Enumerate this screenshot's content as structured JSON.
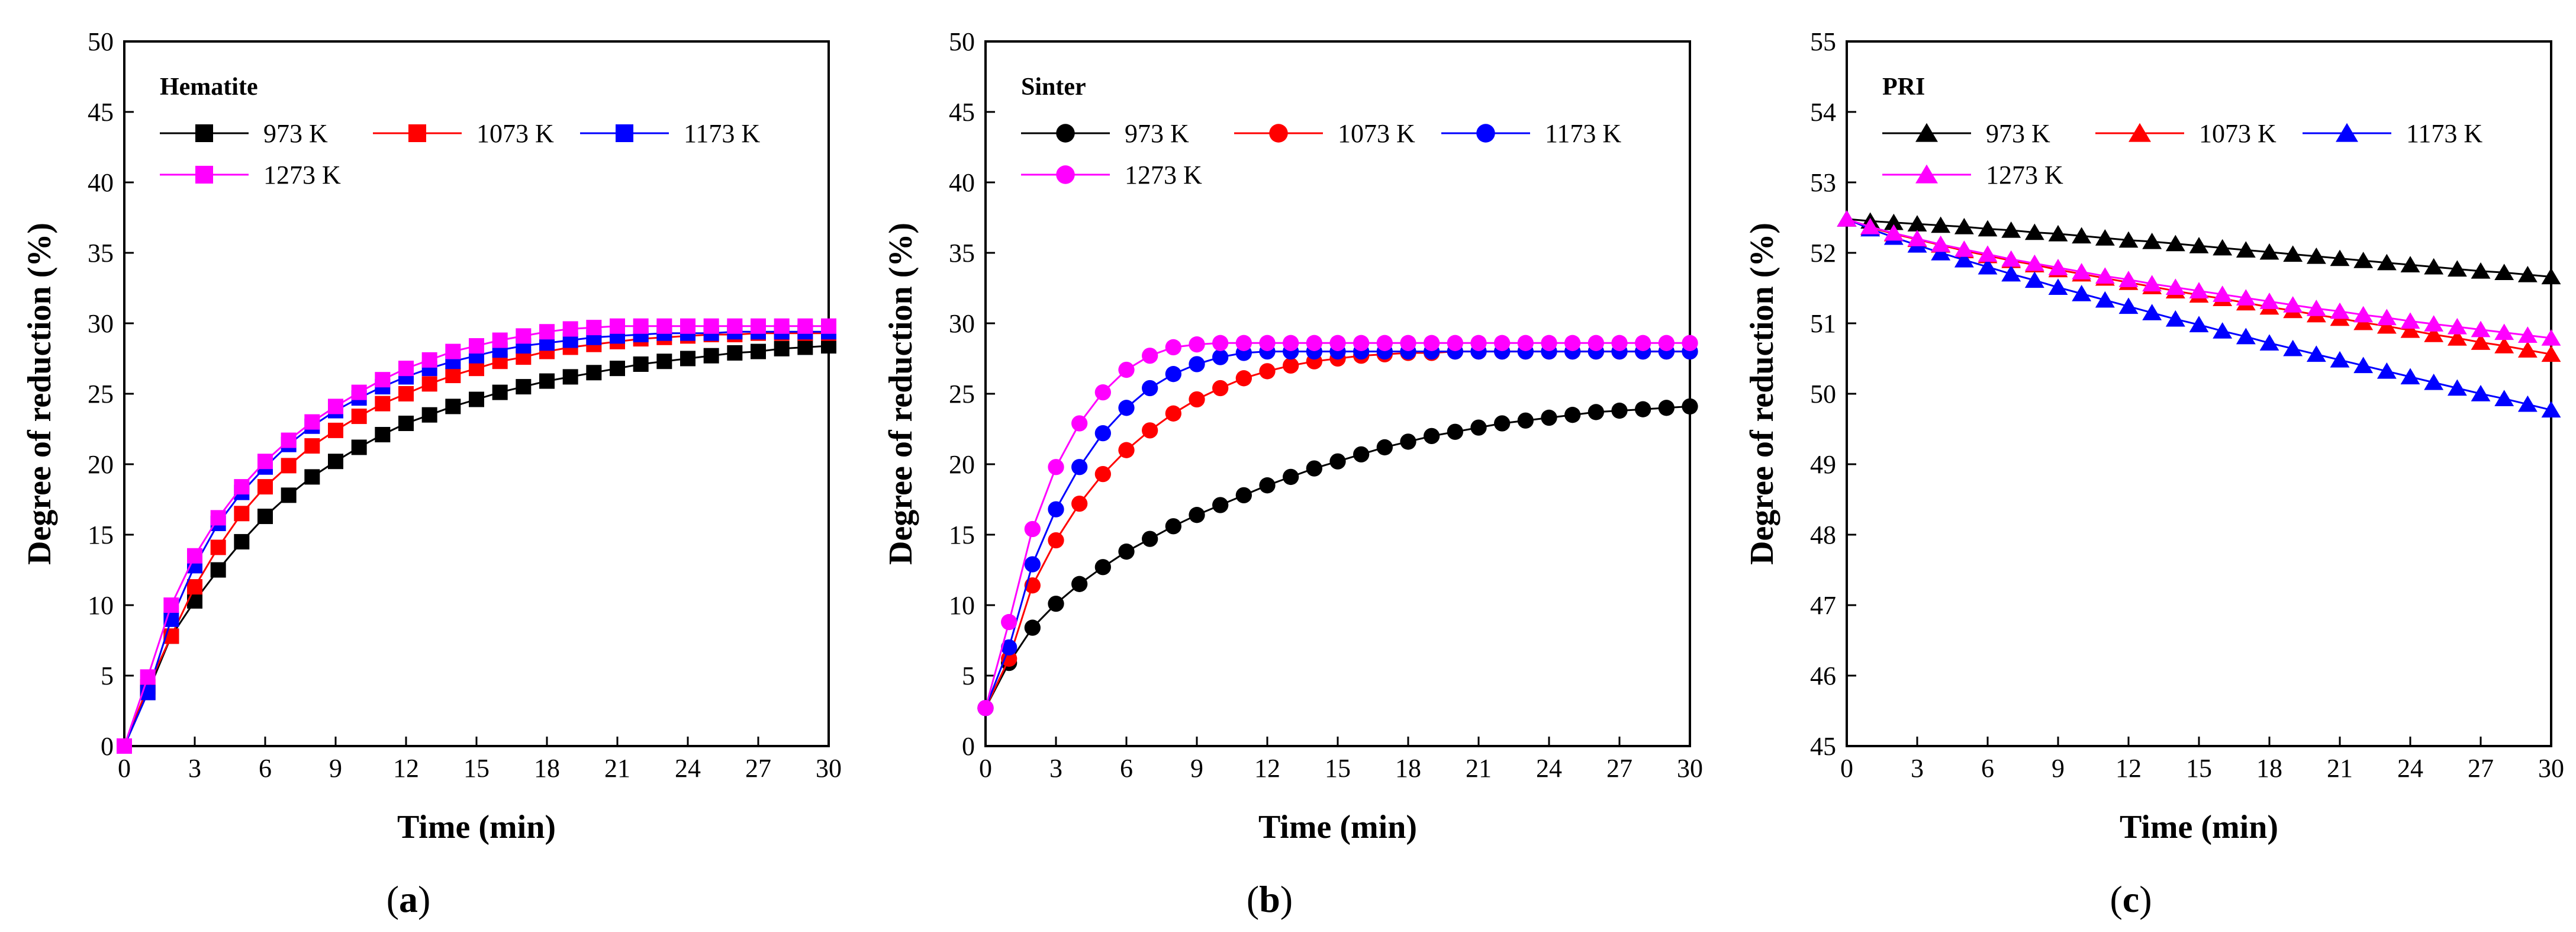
{
  "chart_data": [
    {
      "type": "line",
      "panel_label": "(a)",
      "caption_open": "(",
      "caption_letter": "a",
      "caption_close": ")",
      "title": "Hematite",
      "xlabel": "Time (min)",
      "ylabel": "Degree of reduction (%)",
      "xlim": [
        0,
        30
      ],
      "ylim": [
        0,
        50
      ],
      "xticks": [
        0,
        3,
        6,
        9,
        12,
        15,
        18,
        21,
        24,
        27,
        30
      ],
      "yticks": [
        0,
        5,
        10,
        15,
        20,
        25,
        30,
        35,
        40,
        45,
        50
      ],
      "marker": "square",
      "legend_position": "top-left",
      "x": [
        0,
        1,
        2,
        3,
        4,
        5,
        6,
        7,
        8,
        9,
        10,
        11,
        12,
        13,
        14,
        15,
        16,
        17,
        18,
        19,
        20,
        21,
        22,
        23,
        24,
        25,
        26,
        27,
        28,
        29,
        30
      ],
      "series": [
        {
          "name": "973 K",
          "color": "#000000",
          "values": [
            0,
            3.8,
            7.8,
            10.3,
            12.5,
            14.5,
            16.3,
            17.8,
            19.1,
            20.2,
            21.2,
            22.1,
            22.9,
            23.5,
            24.1,
            24.6,
            25.1,
            25.5,
            25.9,
            26.2,
            26.5,
            26.8,
            27.1,
            27.3,
            27.5,
            27.7,
            27.9,
            28.0,
            28.2,
            28.3,
            28.4
          ]
        },
        {
          "name": "1073 K",
          "color": "#ff0000",
          "values": [
            0,
            4.2,
            7.8,
            11.3,
            14.1,
            16.5,
            18.4,
            19.9,
            21.3,
            22.4,
            23.4,
            24.3,
            25.0,
            25.7,
            26.3,
            26.8,
            27.3,
            27.6,
            28.0,
            28.3,
            28.5,
            28.7,
            28.9,
            29.0,
            29.1,
            29.2,
            29.2,
            29.3,
            29.3,
            29.3,
            29.3
          ]
        },
        {
          "name": "1173 K",
          "color": "#0000ff",
          "values": [
            0,
            3.8,
            9.0,
            12.8,
            15.8,
            18.0,
            19.8,
            21.4,
            22.7,
            23.8,
            24.7,
            25.5,
            26.2,
            26.8,
            27.3,
            27.7,
            28.1,
            28.4,
            28.6,
            28.8,
            29.0,
            29.1,
            29.2,
            29.3,
            29.3,
            29.3,
            29.4,
            29.4,
            29.4,
            29.4,
            29.4
          ]
        },
        {
          "name": "1273 K",
          "color": "#ff00ff",
          "values": [
            0,
            4.9,
            10.0,
            13.5,
            16.2,
            18.4,
            20.2,
            21.7,
            23.0,
            24.1,
            25.1,
            26.0,
            26.8,
            27.4,
            28.0,
            28.4,
            28.8,
            29.1,
            29.4,
            29.6,
            29.7,
            29.8,
            29.8,
            29.8,
            29.8,
            29.8,
            29.8,
            29.8,
            29.8,
            29.8,
            29.8
          ]
        }
      ]
    },
    {
      "type": "line",
      "panel_label": "(b)",
      "caption_open": "(",
      "caption_letter": "b",
      "caption_close": ")",
      "title": "Sinter",
      "xlabel": "Time (min)",
      "ylabel": "Degree of reduction (%)",
      "xlim": [
        0,
        30
      ],
      "ylim": [
        0,
        50
      ],
      "xticks": [
        0,
        3,
        6,
        9,
        12,
        15,
        18,
        21,
        24,
        27,
        30
      ],
      "yticks": [
        0,
        5,
        10,
        15,
        20,
        25,
        30,
        35,
        40,
        45,
        50
      ],
      "marker": "circle",
      "legend_position": "top-left",
      "x": [
        0,
        1,
        2,
        3,
        4,
        5,
        6,
        7,
        8,
        9,
        10,
        11,
        12,
        13,
        14,
        15,
        16,
        17,
        18,
        19,
        20,
        21,
        22,
        23,
        24,
        25,
        26,
        27,
        28,
        29,
        30
      ],
      "series": [
        {
          "name": "973 K",
          "color": "#000000",
          "values": [
            2.7,
            5.9,
            8.4,
            10.1,
            11.5,
            12.7,
            13.8,
            14.7,
            15.6,
            16.4,
            17.1,
            17.8,
            18.5,
            19.1,
            19.7,
            20.2,
            20.7,
            21.2,
            21.6,
            22.0,
            22.3,
            22.6,
            22.9,
            23.1,
            23.3,
            23.5,
            23.7,
            23.8,
            23.9,
            24.0,
            24.1
          ]
        },
        {
          "name": "1073 K",
          "color": "#ff0000",
          "values": [
            2.7,
            6.2,
            11.4,
            14.6,
            17.2,
            19.3,
            21.0,
            22.4,
            23.6,
            24.6,
            25.4,
            26.1,
            26.6,
            27.0,
            27.3,
            27.5,
            27.7,
            27.8,
            27.9,
            27.9,
            28.0,
            28.0,
            28.0,
            28.0,
            28.0,
            28.0,
            28.0,
            28.0,
            28.0,
            28.0,
            28.0
          ]
        },
        {
          "name": "1173 K",
          "color": "#0000ff",
          "values": [
            2.7,
            7.0,
            12.9,
            16.8,
            19.8,
            22.2,
            24.0,
            25.4,
            26.4,
            27.1,
            27.6,
            27.9,
            28.0,
            28.0,
            28.0,
            28.0,
            28.0,
            28.0,
            28.0,
            28.0,
            28.0,
            28.0,
            28.0,
            28.0,
            28.0,
            28.0,
            28.0,
            28.0,
            28.0,
            28.0,
            28.0
          ]
        },
        {
          "name": "1273 K",
          "color": "#ff00ff",
          "values": [
            2.7,
            8.8,
            15.4,
            19.8,
            22.9,
            25.1,
            26.7,
            27.7,
            28.3,
            28.5,
            28.6,
            28.6,
            28.6,
            28.6,
            28.6,
            28.6,
            28.6,
            28.6,
            28.6,
            28.6,
            28.6,
            28.6,
            28.6,
            28.6,
            28.6,
            28.6,
            28.6,
            28.6,
            28.6,
            28.6,
            28.6
          ]
        }
      ]
    },
    {
      "type": "line",
      "panel_label": "(c)",
      "caption_open": "(",
      "caption_letter": "c",
      "caption_close": ")",
      "title": "PRI",
      "xlabel": "Time (min)",
      "ylabel": "Degree of reduction (%)",
      "xlim": [
        0,
        30
      ],
      "ylim": [
        45,
        55
      ],
      "xticks": [
        0,
        3,
        6,
        9,
        12,
        15,
        18,
        21,
        24,
        27,
        30
      ],
      "yticks": [
        45,
        46,
        47,
        48,
        49,
        50,
        51,
        52,
        53,
        54,
        55
      ],
      "marker": "triangle",
      "legend_position": "top-left",
      "x": [
        0,
        1,
        2,
        3,
        4,
        5,
        6,
        7,
        8,
        9,
        10,
        11,
        12,
        13,
        14,
        15,
        16,
        17,
        18,
        19,
        20,
        21,
        22,
        23,
        24,
        25,
        26,
        27,
        28,
        29,
        30
      ],
      "series": [
        {
          "name": "973 K",
          "color": "#000000",
          "values": [
            52.48,
            52.45,
            52.43,
            52.41,
            52.39,
            52.37,
            52.34,
            52.32,
            52.29,
            52.27,
            52.24,
            52.21,
            52.18,
            52.16,
            52.13,
            52.1,
            52.07,
            52.04,
            52.01,
            51.98,
            51.95,
            51.92,
            51.89,
            51.86,
            51.83,
            51.8,
            51.77,
            51.74,
            51.72,
            51.69,
            51.66
          ]
        },
        {
          "name": "1073 K",
          "color": "#ff0000",
          "values": [
            52.48,
            52.36,
            52.27,
            52.19,
            52.11,
            52.03,
            51.96,
            51.89,
            51.83,
            51.76,
            51.7,
            51.64,
            51.58,
            51.52,
            51.46,
            51.4,
            51.35,
            51.29,
            51.23,
            51.18,
            51.12,
            51.07,
            51.01,
            50.96,
            50.9,
            50.84,
            50.79,
            50.73,
            50.68,
            50.62,
            50.56
          ]
        },
        {
          "name": "1173 K",
          "color": "#0000ff",
          "values": [
            52.48,
            52.34,
            52.22,
            52.11,
            52.0,
            51.9,
            51.8,
            51.7,
            51.61,
            51.51,
            51.42,
            51.33,
            51.24,
            51.15,
            51.06,
            50.98,
            50.89,
            50.81,
            50.72,
            50.64,
            50.56,
            50.48,
            50.4,
            50.32,
            50.24,
            50.16,
            50.08,
            50.0,
            49.93,
            49.85,
            49.77
          ]
        },
        {
          "name": "1273 K",
          "color": "#ff00ff",
          "values": [
            52.48,
            52.37,
            52.28,
            52.2,
            52.12,
            52.05,
            51.98,
            51.91,
            51.85,
            51.79,
            51.73,
            51.67,
            51.62,
            51.56,
            51.51,
            51.46,
            51.41,
            51.36,
            51.31,
            51.26,
            51.21,
            51.17,
            51.12,
            51.08,
            51.03,
            50.99,
            50.95,
            50.91,
            50.87,
            50.83,
            50.79
          ]
        }
      ]
    }
  ]
}
